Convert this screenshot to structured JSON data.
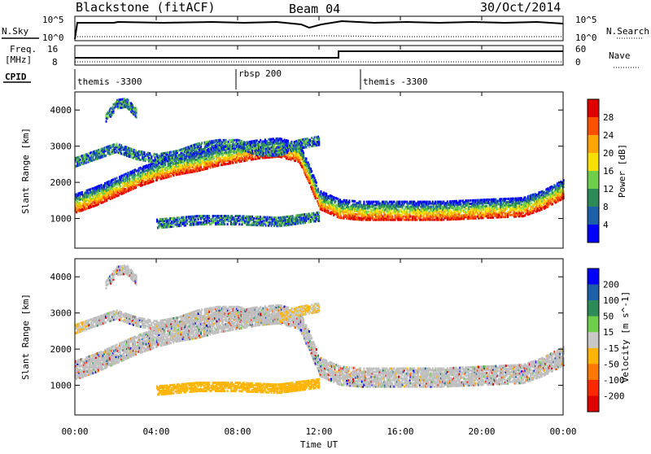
{
  "header": {
    "station": "Blackstone (fitACF)",
    "beam": "Beam 04",
    "date": "30/Oct/2014"
  },
  "top_panel": {
    "left_label": "N.Sky",
    "right_label": "N.Search",
    "left_ticks": [
      "10^5",
      "10^0"
    ],
    "right_ticks": [
      "10^5",
      "10^0"
    ]
  },
  "freq_panel": {
    "left_label_line1": "Freq.",
    "left_label_line2": "[MHz]",
    "right_label": "Nave",
    "left_ticks": [
      "16",
      "8"
    ],
    "right_ticks": [
      "60",
      "0"
    ]
  },
  "cpid_panel": {
    "label": "CPID",
    "segments": [
      "themis -3300",
      "rbsp 200",
      "themis -3300"
    ]
  },
  "colors": {
    "power": [
      "#0000ff",
      "#1d5fa8",
      "#2e8b57",
      "#6fcf4a",
      "#f5e000",
      "#ffa500",
      "#ff5000",
      "#e00000"
    ],
    "velocity": [
      "#0000ff",
      "#1d5fa8",
      "#2e8b57",
      "#6fcf4a",
      "#c8c8c8",
      "#ffb400",
      "#ff7800",
      "#ff2800",
      "#e00000"
    ],
    "ground_scatter": "#bebebe"
  },
  "chart_data": [
    {
      "type": "heatmap",
      "parameter": "power",
      "ylabel": "Slant Range [km]",
      "xlabel": "Time UT",
      "ylim": [
        180,
        4500
      ],
      "y_ticks": [
        1000,
        2000,
        3000,
        4000
      ],
      "x_ticks": [
        "00:00",
        "04:00",
        "08:00",
        "12:00",
        "16:00",
        "20:00",
        "00:00"
      ],
      "colorbar_label": "Power [dB]",
      "colorbar_ticks": [
        "4",
        "8",
        "12",
        "16",
        "20",
        "24",
        "28"
      ],
      "scatter_bands": [
        {
          "name": "lower",
          "hours": [
            0,
            1,
            2,
            3,
            4,
            5,
            6,
            7,
            8,
            9,
            10,
            11,
            11.5,
            12,
            13,
            14,
            16,
            18,
            20,
            22,
            23,
            24
          ],
          "range_km": [
            1200,
            1400,
            1650,
            1900,
            2100,
            2250,
            2350,
            2500,
            2600,
            2700,
            2750,
            2600,
            2000,
            1300,
            1050,
            1000,
            1000,
            1000,
            1050,
            1100,
            1300,
            1600
          ]
        },
        {
          "name": "upper",
          "hours": [
            0,
            1,
            2,
            3,
            4,
            5,
            6,
            7,
            8,
            9,
            10,
            11,
            12
          ],
          "range_km": [
            2600,
            2800,
            3000,
            2800,
            2700,
            2800,
            3000,
            3100,
            3100,
            2900,
            2900,
            3100,
            3200
          ]
        },
        {
          "name": "high",
          "hours": [
            1.5,
            2.0,
            2.5,
            3.0
          ],
          "range_km": [
            3800,
            4200,
            4250,
            3950
          ]
        },
        {
          "name": "near",
          "hours": [
            4,
            6,
            8,
            10,
            12
          ],
          "range_km": [
            900,
            1000,
            1000,
            950,
            1100
          ]
        }
      ]
    },
    {
      "type": "heatmap",
      "parameter": "velocity",
      "ylabel": "Slant Range [km]",
      "xlabel": "Time UT",
      "ylim": [
        180,
        4500
      ],
      "y_ticks": [
        1000,
        2000,
        3000,
        4000
      ],
      "x_ticks": [
        "00:00",
        "04:00",
        "08:00",
        "12:00",
        "16:00",
        "20:00",
        "00:00"
      ],
      "colorbar_label": "Velocity [m s^-1]",
      "colorbar_ticks": [
        "200",
        "100",
        "50",
        "15",
        "-15",
        "-50",
        "-100",
        "-200"
      ]
    }
  ],
  "xlabel": "Time UT"
}
